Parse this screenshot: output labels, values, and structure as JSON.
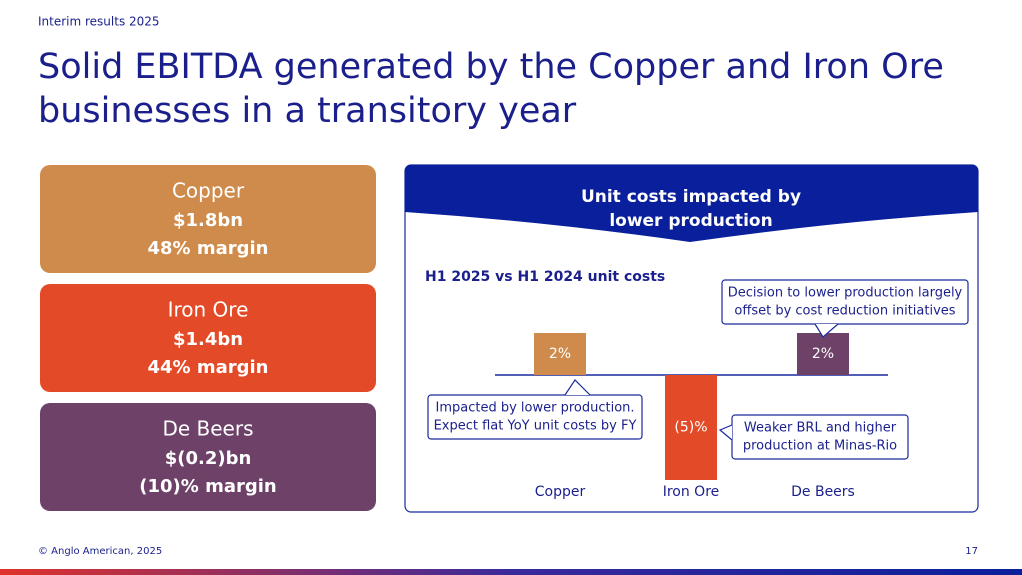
{
  "header": "Interim results 2025",
  "title": [
    "Solid EBITDA generated by the Copper and Iron Ore",
    "businesses in a transitory year"
  ],
  "segments": [
    {
      "name": "Copper",
      "ebitda": "$1.8bn",
      "margin": "48% margin",
      "color": "#cf8b4b"
    },
    {
      "name": "Iron Ore",
      "ebitda": "$1.4bn",
      "margin": "44% margin",
      "color": "#e34a27"
    },
    {
      "name": "De Beers",
      "ebitda": "$(0.2)bn",
      "margin": "(10)% margin",
      "color": "#6e4268"
    }
  ],
  "chart_data": {
    "type": "bar",
    "title": [
      "Unit costs impacted by",
      "lower production"
    ],
    "subtitle": "H1 2025 vs H1 2024 unit costs",
    "categories": [
      "Copper",
      "Iron Ore",
      "De Beers"
    ],
    "values": [
      2,
      -5,
      2
    ],
    "value_labels": [
      "2%",
      "(5)%",
      "2%"
    ],
    "colors": [
      "#cf8b4b",
      "#e34a27",
      "#6e4268"
    ],
    "annotations": [
      [
        "Impacted by lower production.",
        "Expect flat YoY unit costs by FY"
      ],
      [
        "Weaker BRL and higher",
        "production at Minas-Rio"
      ],
      [
        "Decision to lower production largely",
        "offset by cost reduction initiatives"
      ]
    ]
  },
  "footer": {
    "copyright": "© Anglo American, 2025",
    "page": "17"
  }
}
